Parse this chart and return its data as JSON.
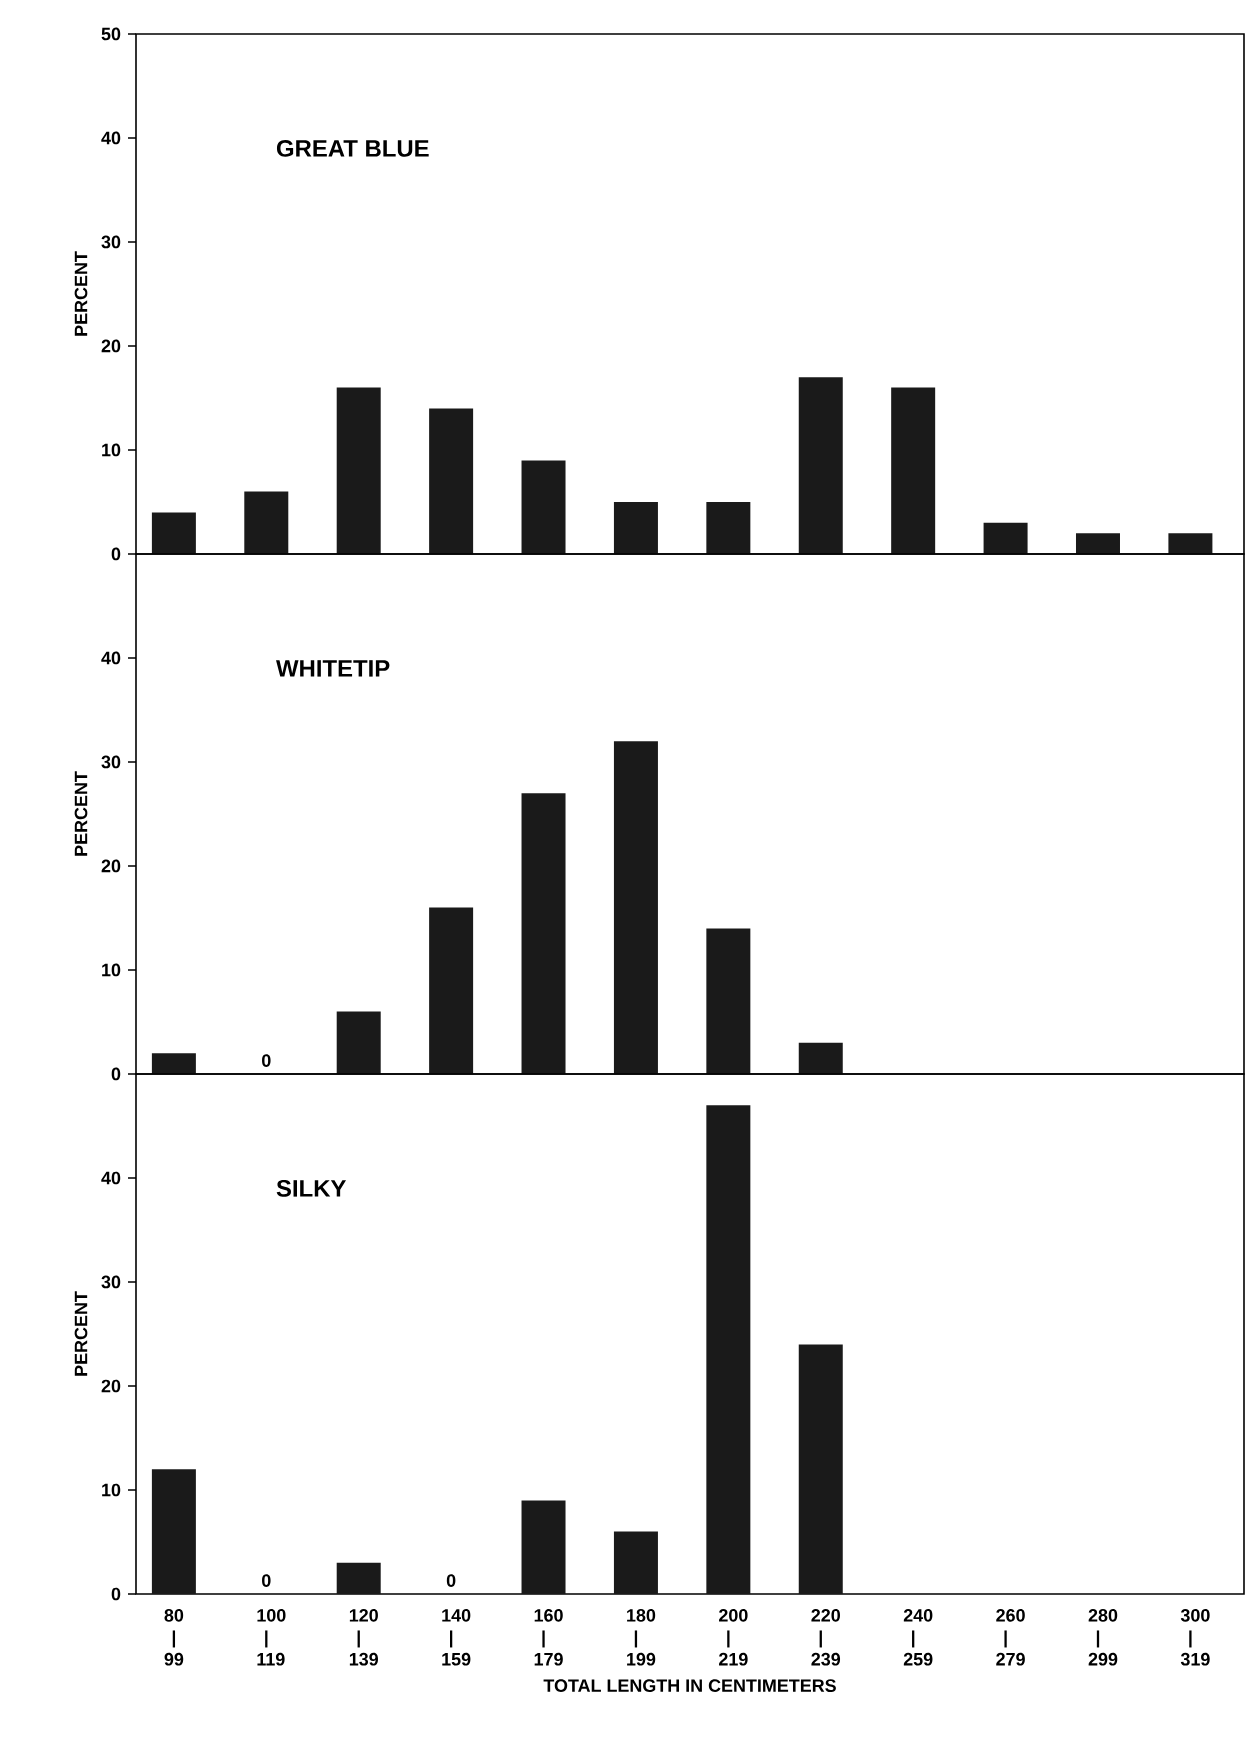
{
  "chart_data": [
    {
      "type": "bar",
      "title": "GREAT BLUE",
      "ylabel": "PERCENT",
      "categories": [
        null,
        null,
        null,
        null,
        null,
        null,
        null,
        null,
        null,
        null,
        null,
        null
      ],
      "values": [
        4,
        6,
        16,
        14,
        9,
        5,
        5,
        17,
        16,
        3,
        2,
        2
      ],
      "color": "#1a1a1a",
      "ylim": [
        0,
        50
      ],
      "yticks": [
        0,
        10,
        20,
        30,
        40,
        50
      ],
      "tick_labels": "y"
    },
    {
      "type": "bar",
      "title": "WHITETIP",
      "ylabel": "PERCENT",
      "categories": [
        null,
        null,
        null,
        null,
        null,
        null,
        null,
        null,
        null,
        null,
        null,
        null
      ],
      "values": [
        2,
        0,
        6,
        16,
        27,
        32,
        14,
        3,
        null,
        null,
        null,
        null
      ],
      "value_labels": [
        null,
        "0",
        null,
        null,
        null,
        null,
        null,
        null,
        null,
        null,
        null,
        null
      ],
      "color": "#1a1a1a",
      "ylim": [
        0,
        50
      ],
      "yticks": [
        0,
        10,
        20,
        30,
        40
      ],
      "tick_labels": "y"
    },
    {
      "type": "bar",
      "title": "SILKY",
      "ylabel": "PERCENT",
      "xlabel": "TOTAL LENGTH IN CENTIMETERS",
      "categories": [
        "80 | 99",
        "100 | 119",
        "120 | 139",
        "140 | 159",
        "160 | 179",
        "180 | 199",
        "200 | 219",
        "220 | 239",
        "240 | 259",
        "260 | 279",
        "280 | 299",
        "300 | 319"
      ],
      "values": [
        12,
        0,
        3,
        0,
        9,
        6,
        47,
        24,
        null,
        null,
        null,
        null
      ],
      "value_labels": [
        null,
        "0",
        null,
        "0",
        null,
        null,
        null,
        null,
        null,
        null,
        null,
        null
      ],
      "color": "#1a1a1a",
      "ylim": [
        0,
        50
      ],
      "yticks": [
        0,
        10,
        20,
        30,
        40
      ]
    }
  ]
}
